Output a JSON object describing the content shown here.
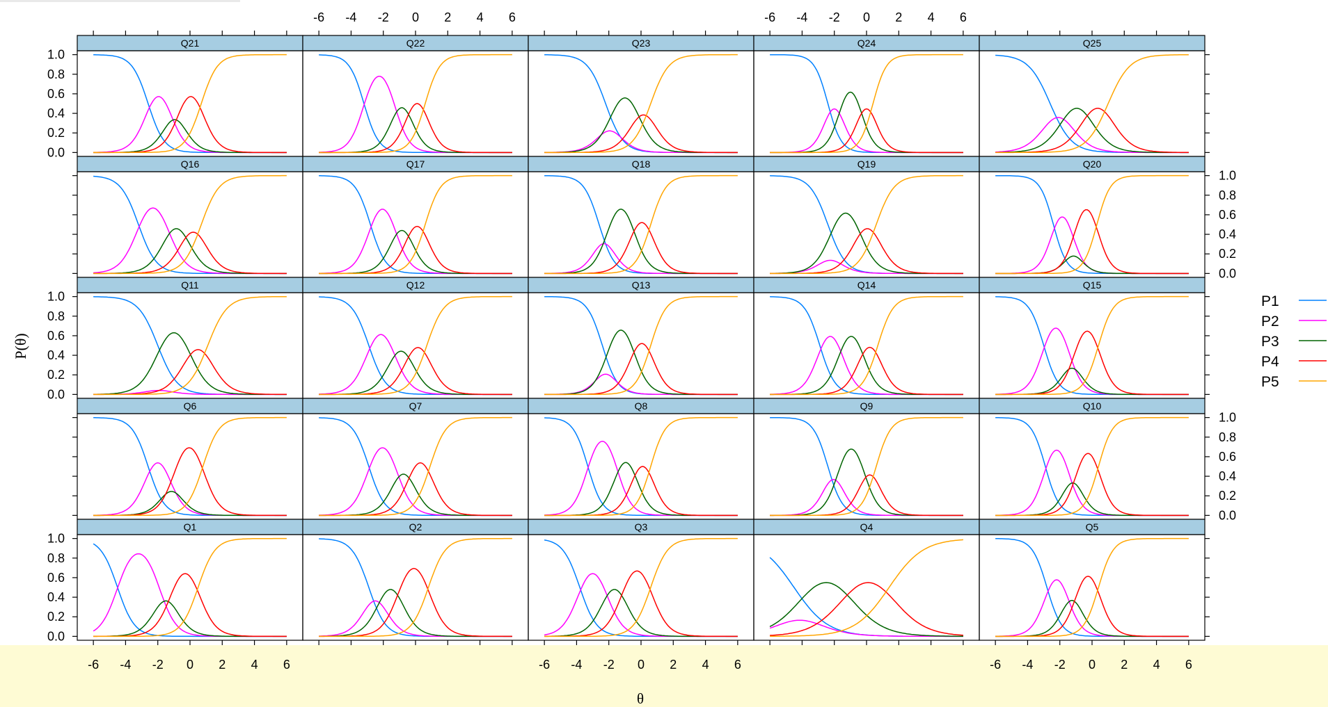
{
  "chart_data": {
    "type": "line",
    "xlabel": "θ",
    "ylabel": "P(θ)",
    "xlim": [
      -7,
      7
    ],
    "ylim": [
      -0.04,
      1.04
    ],
    "x_ticks": [
      -6,
      -4,
      -2,
      0,
      2,
      4,
      6
    ],
    "y_ticks": [
      0.0,
      0.2,
      0.4,
      0.6,
      0.8,
      1.0
    ],
    "x_tick_labels": [
      "-6",
      "-4",
      "-2",
      "0",
      "2",
      "4",
      "6"
    ],
    "y_tick_labels": [
      "0.0",
      "0.2",
      "0.4",
      "0.6",
      "0.8",
      "1.0"
    ],
    "theta_grid": {
      "from": -6,
      "to": 6,
      "step": 0.1
    },
    "grid": false,
    "legend_position": "right",
    "layout": {
      "columns": 5,
      "rows": 5
    },
    "series": [
      {
        "name": "P1",
        "color": "#0080ff"
      },
      {
        "name": "P2",
        "color": "#ff00ff"
      },
      {
        "name": "P3",
        "color": "#006400"
      },
      {
        "name": "P4",
        "color": "#ff0000"
      },
      {
        "name": "P5",
        "color": "#ffa500"
      }
    ],
    "panels": [
      {
        "title": "Q21",
        "a": 2.0,
        "b": [
          -2.6,
          -1.3,
          -0.6,
          0.7
        ]
      },
      {
        "title": "Q22",
        "a": 2.2,
        "b": [
          -3.2,
          -1.3,
          -0.4,
          0.6
        ]
      },
      {
        "title": "Q23",
        "a": 1.8,
        "b": [
          -2.2,
          -1.7,
          -0.3,
          0.6
        ]
      },
      {
        "title": "Q24",
        "a": 2.4,
        "b": [
          -2.4,
          -1.6,
          -0.4,
          0.4
        ]
      },
      {
        "title": "Q25",
        "a": 1.5,
        "b": [
          -2.6,
          -1.6,
          -0.3,
          1.0
        ]
      },
      {
        "title": "Q16",
        "a": 1.8,
        "b": [
          -3.2,
          -1.4,
          -0.3,
          0.7
        ]
      },
      {
        "title": "Q17",
        "a": 2.1,
        "b": [
          -2.8,
          -1.3,
          -0.4,
          0.6
        ]
      },
      {
        "title": "Q18",
        "a": 2.1,
        "b": [
          -2.6,
          -2.0,
          -0.5,
          0.6
        ]
      },
      {
        "title": "Q19",
        "a": 1.8,
        "b": [
          -2.4,
          -2.1,
          -0.5,
          0.6
        ]
      },
      {
        "title": "Q20",
        "a": 2.4,
        "b": [
          -2.4,
          -1.3,
          -1.0,
          0.3
        ]
      },
      {
        "title": "Q11",
        "a": 1.65,
        "b": [
          -2.0,
          -1.9,
          -0.1,
          1.1
        ]
      },
      {
        "title": "Q12",
        "a": 1.9,
        "b": [
          -2.9,
          -1.4,
          -0.4,
          0.7
        ]
      },
      {
        "title": "Q13",
        "a": 2.1,
        "b": [
          -2.4,
          -2.0,
          -0.5,
          0.6
        ]
      },
      {
        "title": "Q14",
        "a": 2.1,
        "b": [
          -2.9,
          -1.6,
          -0.3,
          0.7
        ]
      },
      {
        "title": "Q15",
        "a": 2.2,
        "b": [
          -3.0,
          -1.5,
          -1.0,
          0.4
        ]
      },
      {
        "title": "Q6",
        "a": 2.0,
        "b": [
          -2.6,
          -1.4,
          -0.9,
          0.8
        ]
      },
      {
        "title": "Q7",
        "a": 2.0,
        "b": [
          -2.9,
          -1.2,
          -0.3,
          0.9
        ]
      },
      {
        "title": "Q8",
        "a": 2.2,
        "b": [
          -3.3,
          -1.5,
          -0.4,
          0.6
        ]
      },
      {
        "title": "Q9",
        "a": 2.2,
        "b": [
          -2.4,
          -1.7,
          -0.2,
          0.6
        ]
      },
      {
        "title": "Q10",
        "a": 2.3,
        "b": [
          -2.9,
          -1.5,
          -0.9,
          0.4
        ]
      },
      {
        "title": "Q1",
        "a": 1.9,
        "b": [
          -4.5,
          -1.9,
          -1.1,
          0.5
        ]
      },
      {
        "title": "Q2",
        "a": 1.9,
        "b": [
          -2.9,
          -2.1,
          -1.0,
          0.8
        ]
      },
      {
        "title": "Q3",
        "a": 1.9,
        "b": [
          -3.8,
          -2.2,
          -1.1,
          0.6
        ]
      },
      {
        "title": "Q4",
        "a": 0.95,
        "b": [
          -4.5,
          -3.8,
          -1.2,
          1.4
        ]
      },
      {
        "title": "Q5",
        "a": 2.2,
        "b": [
          -2.8,
          -1.6,
          -0.9,
          0.4
        ]
      }
    ]
  }
}
